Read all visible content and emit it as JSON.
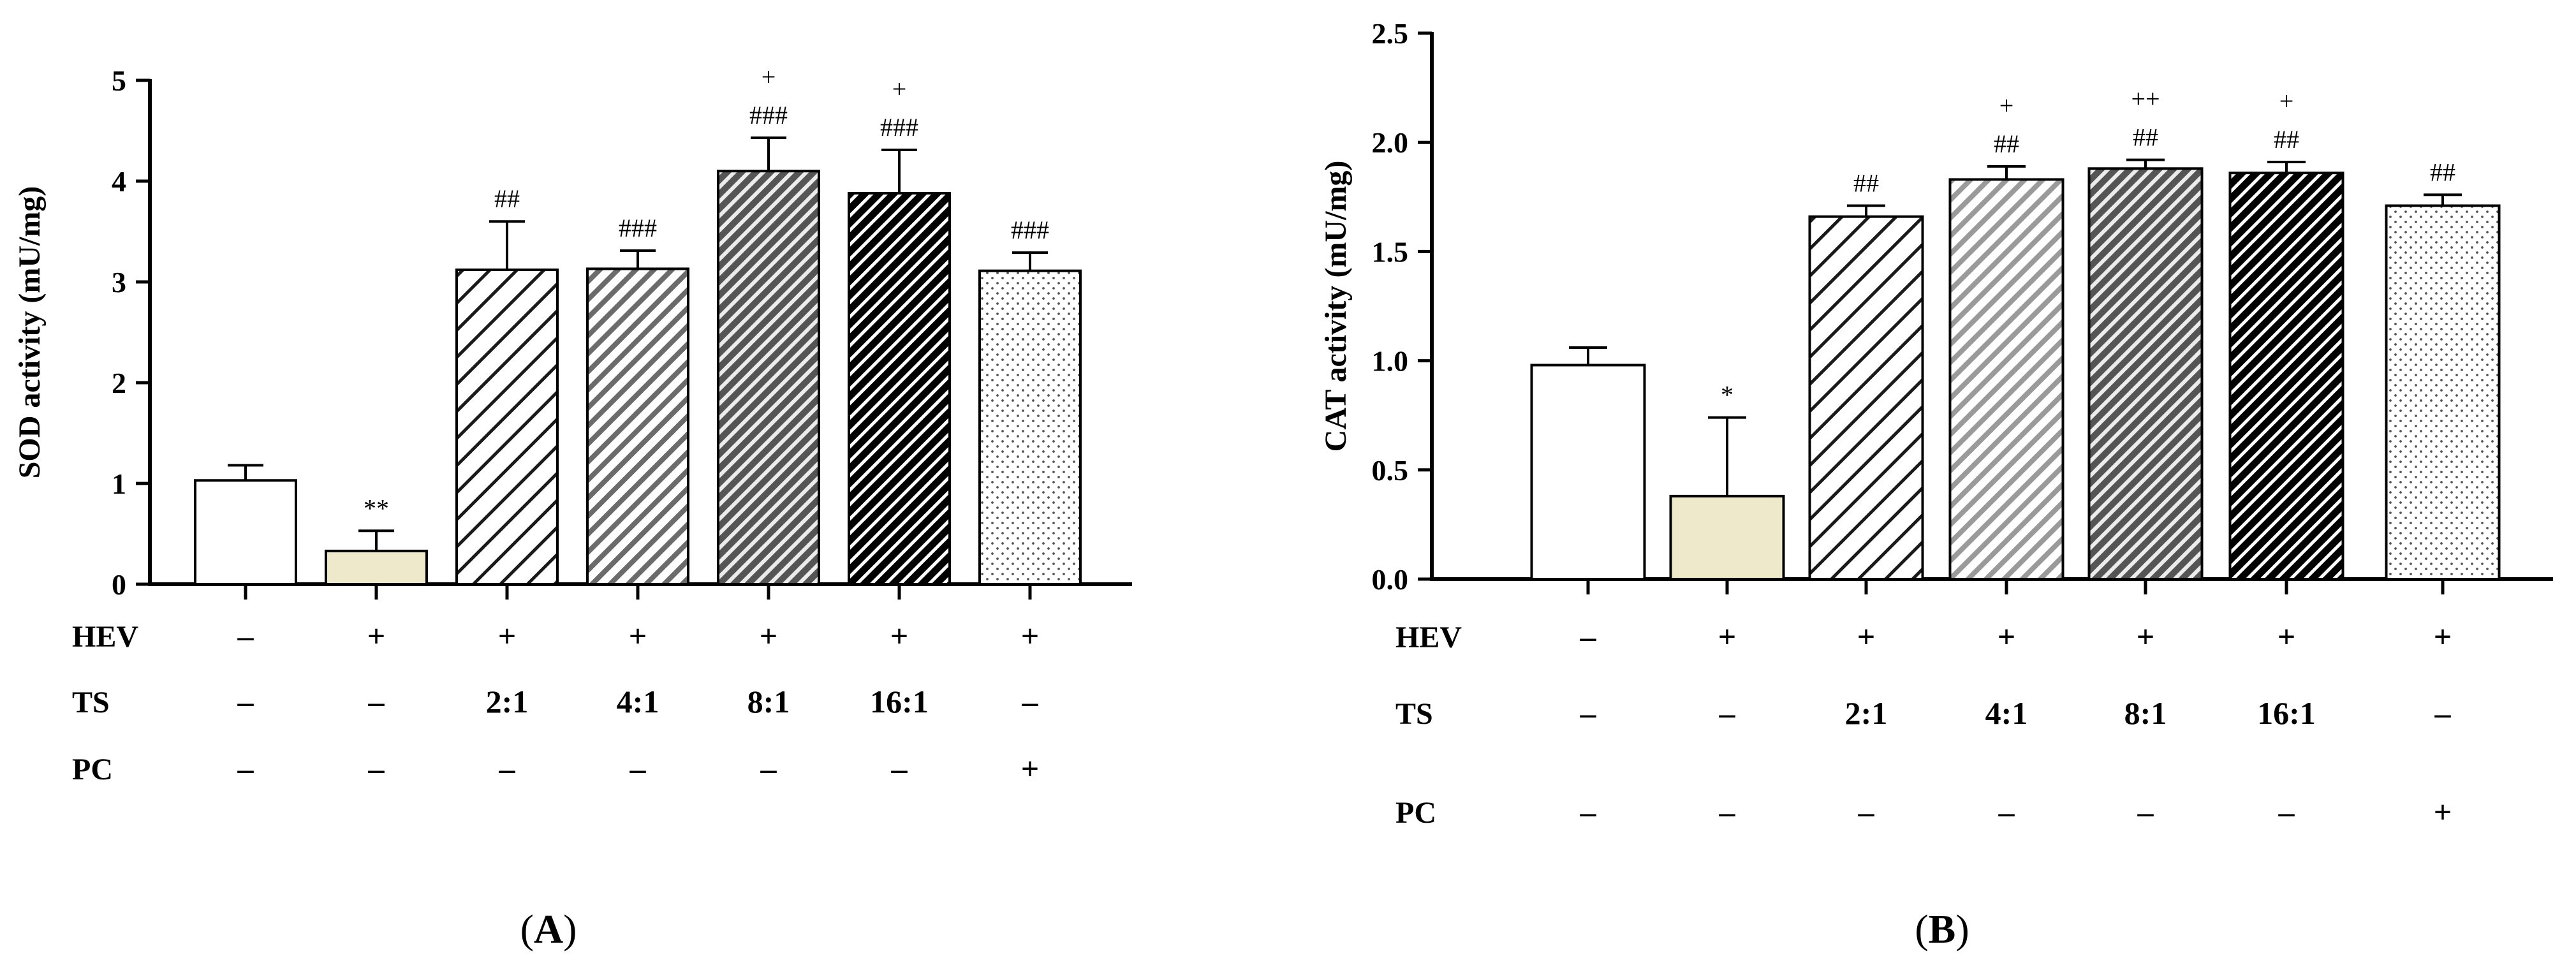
{
  "figure": {
    "colors": {
      "white": "#ffffff",
      "beige": "#efe9cc",
      "stroke": "#000000",
      "dots": "#555555"
    }
  },
  "chart_data": [
    {
      "type": "bar",
      "panel": "A",
      "ylabel": "SOD activity (mU/mg)",
      "ylim": [
        0,
        5
      ],
      "yticks": [
        0,
        1,
        2,
        3,
        4,
        5
      ],
      "ytick_labels": [
        "0",
        "1",
        "2",
        "3",
        "4",
        "5"
      ],
      "grid": false,
      "bars": [
        {
          "value": 1.03,
          "error": 0.15,
          "fill": "white",
          "annotations": []
        },
        {
          "value": 0.33,
          "error": 0.2,
          "fill": "beige",
          "annotations": [
            "**"
          ]
        },
        {
          "value": 3.12,
          "error": 0.48,
          "fill": "hatch-light",
          "annotations": [
            "##"
          ]
        },
        {
          "value": 3.13,
          "error": 0.18,
          "fill": "hatch-medium",
          "annotations": [
            "###"
          ]
        },
        {
          "value": 4.1,
          "error": 0.33,
          "fill": "hatch-dense",
          "annotations": [
            "###",
            "+"
          ]
        },
        {
          "value": 3.88,
          "error": 0.43,
          "fill": "hatch-black",
          "annotations": [
            "###",
            "+"
          ]
        },
        {
          "value": 3.11,
          "error": 0.18,
          "fill": "dots",
          "annotations": [
            "###"
          ]
        }
      ],
      "condition_rows": [
        {
          "label": "HEV",
          "values": [
            "–",
            "+",
            "+",
            "+",
            "+",
            "+",
            "+"
          ]
        },
        {
          "label": "TS",
          "values": [
            "–",
            "–",
            "2:1",
            "4:1",
            "8:1",
            "16:1",
            "–"
          ]
        },
        {
          "label": "PC",
          "values": [
            "–",
            "–",
            "–",
            "–",
            "–",
            "–",
            "+"
          ]
        }
      ],
      "caption": {
        "open": "(",
        "letter": "A",
        "close": ")"
      }
    },
    {
      "type": "bar",
      "panel": "B",
      "ylabel": "CAT activity (mU/mg)",
      "ylim": [
        0,
        2.5
      ],
      "yticks": [
        0,
        0.5,
        1,
        1.5,
        2,
        2.5
      ],
      "ytick_labels": [
        "0.0",
        "0.5",
        "1.0",
        "1.5",
        "2.0",
        "2.5"
      ],
      "grid": false,
      "bars": [
        {
          "value": 0.98,
          "error": 0.08,
          "fill": "white",
          "annotations": []
        },
        {
          "value": 0.38,
          "error": 0.36,
          "fill": "beige",
          "annotations": [
            "*"
          ]
        },
        {
          "value": 1.66,
          "error": 0.05,
          "fill": "hatch-light",
          "annotations": [
            "##"
          ]
        },
        {
          "value": 1.83,
          "error": 0.06,
          "fill": "hatch-grey",
          "annotations": [
            "##",
            "+"
          ]
        },
        {
          "value": 1.88,
          "error": 0.04,
          "fill": "hatch-dense",
          "annotations": [
            "##",
            "++"
          ]
        },
        {
          "value": 1.86,
          "error": 0.05,
          "fill": "hatch-black",
          "annotations": [
            "##",
            "+"
          ]
        },
        {
          "value": 1.71,
          "error": 0.05,
          "fill": "dots",
          "annotations": [
            "##"
          ]
        }
      ],
      "condition_rows": [
        {
          "label": "HEV",
          "values": [
            "–",
            "+",
            "+",
            "+",
            "+",
            "+",
            "+"
          ]
        },
        {
          "label": "TS",
          "values": [
            "–",
            "–",
            "2:1",
            "4:1",
            "8:1",
            "16:1",
            "–"
          ]
        },
        {
          "label": "PC",
          "values": [
            "–",
            "–",
            "–",
            "–",
            "–",
            "–",
            "+"
          ]
        }
      ],
      "caption": {
        "open": "(",
        "letter": "B",
        "close": ")"
      }
    }
  ]
}
